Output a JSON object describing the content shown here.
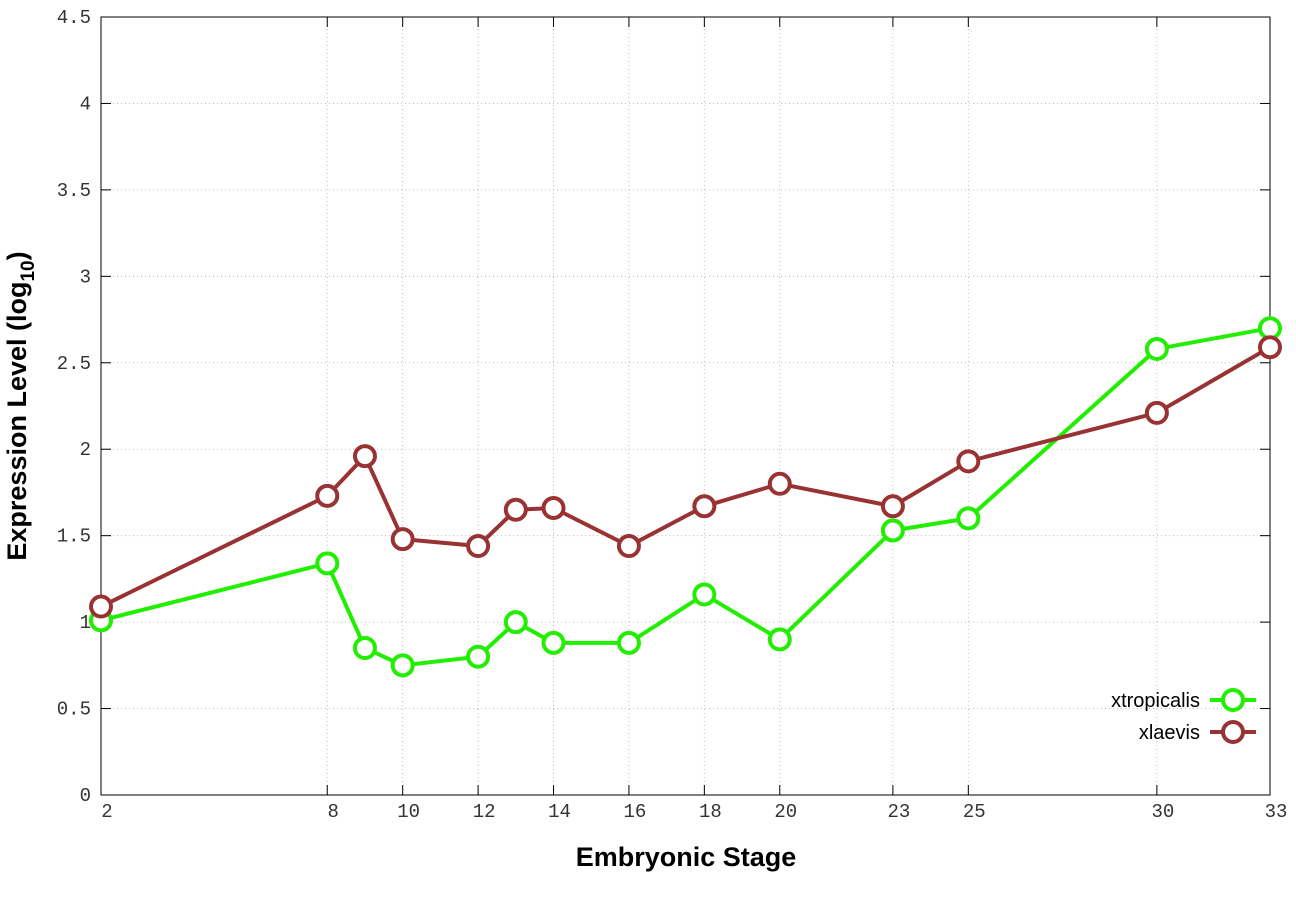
{
  "chart_data": {
    "type": "line",
    "xlabel": "Embryonic Stage",
    "ylabel": "Expression Level (log",
    "ylabel_sub": "10",
    "ylabel_end": ")",
    "x": [
      2,
      8,
      9,
      10,
      12,
      13,
      14,
      16,
      18,
      20,
      23,
      25,
      30,
      33
    ],
    "series": [
      {
        "name": "xtropicalis",
        "color": "#22ee00",
        "values": [
          1.01,
          1.34,
          0.85,
          0.75,
          0.8,
          1.0,
          0.88,
          0.88,
          1.16,
          0.9,
          1.53,
          1.6,
          2.58,
          2.7
        ]
      },
      {
        "name": "xlaevis",
        "color": "#993333",
        "values": [
          1.09,
          1.73,
          1.96,
          1.48,
          1.44,
          1.65,
          1.66,
          1.44,
          1.67,
          1.8,
          1.67,
          1.93,
          2.21,
          2.59
        ]
      }
    ],
    "xlim": [
      2,
      33
    ],
    "xticks": [
      2,
      8,
      10,
      12,
      14,
      16,
      18,
      20,
      23,
      25,
      30,
      33
    ],
    "ylim": [
      0,
      4.5
    ],
    "yticks": [
      0,
      0.5,
      1,
      1.5,
      2,
      2.5,
      3,
      3.5,
      4,
      4.5
    ],
    "grid": true,
    "legend": "lower right"
  }
}
